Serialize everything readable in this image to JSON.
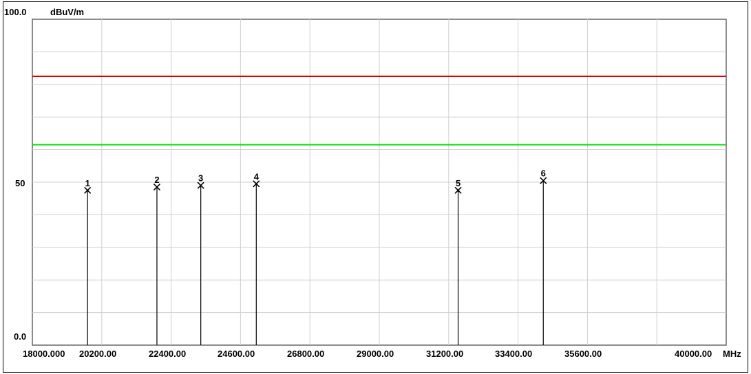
{
  "chart_data": {
    "type": "scatter",
    "ylabel": "dBuV/m",
    "xunit": "MHz",
    "ylim": [
      0,
      100
    ],
    "xlim": [
      18000,
      40000
    ],
    "y_tick_labels": [
      "100.0",
      "50",
      "0.0"
    ],
    "x_tick_labels": [
      "18000.000",
      "20200.00",
      "22400.00",
      "24600.00",
      "26800.00",
      "29000.00",
      "31200.00",
      "33400.00",
      "35600.00",
      "40000.00"
    ],
    "grid": true,
    "limit_lines": [
      {
        "value": 82.5,
        "color": "#dd0000"
      },
      {
        "value": 61.5,
        "color": "#00dd00"
      }
    ],
    "markers": [
      {
        "label": "1",
        "x": 19750,
        "y": 47.5
      },
      {
        "label": "2",
        "x": 21950,
        "y": 48.5
      },
      {
        "label": "3",
        "x": 23340,
        "y": 49.0
      },
      {
        "label": "4",
        "x": 25100,
        "y": 49.5
      },
      {
        "label": "5",
        "x": 31500,
        "y": 47.5
      },
      {
        "label": "6",
        "x": 34200,
        "y": 50.5
      }
    ]
  }
}
